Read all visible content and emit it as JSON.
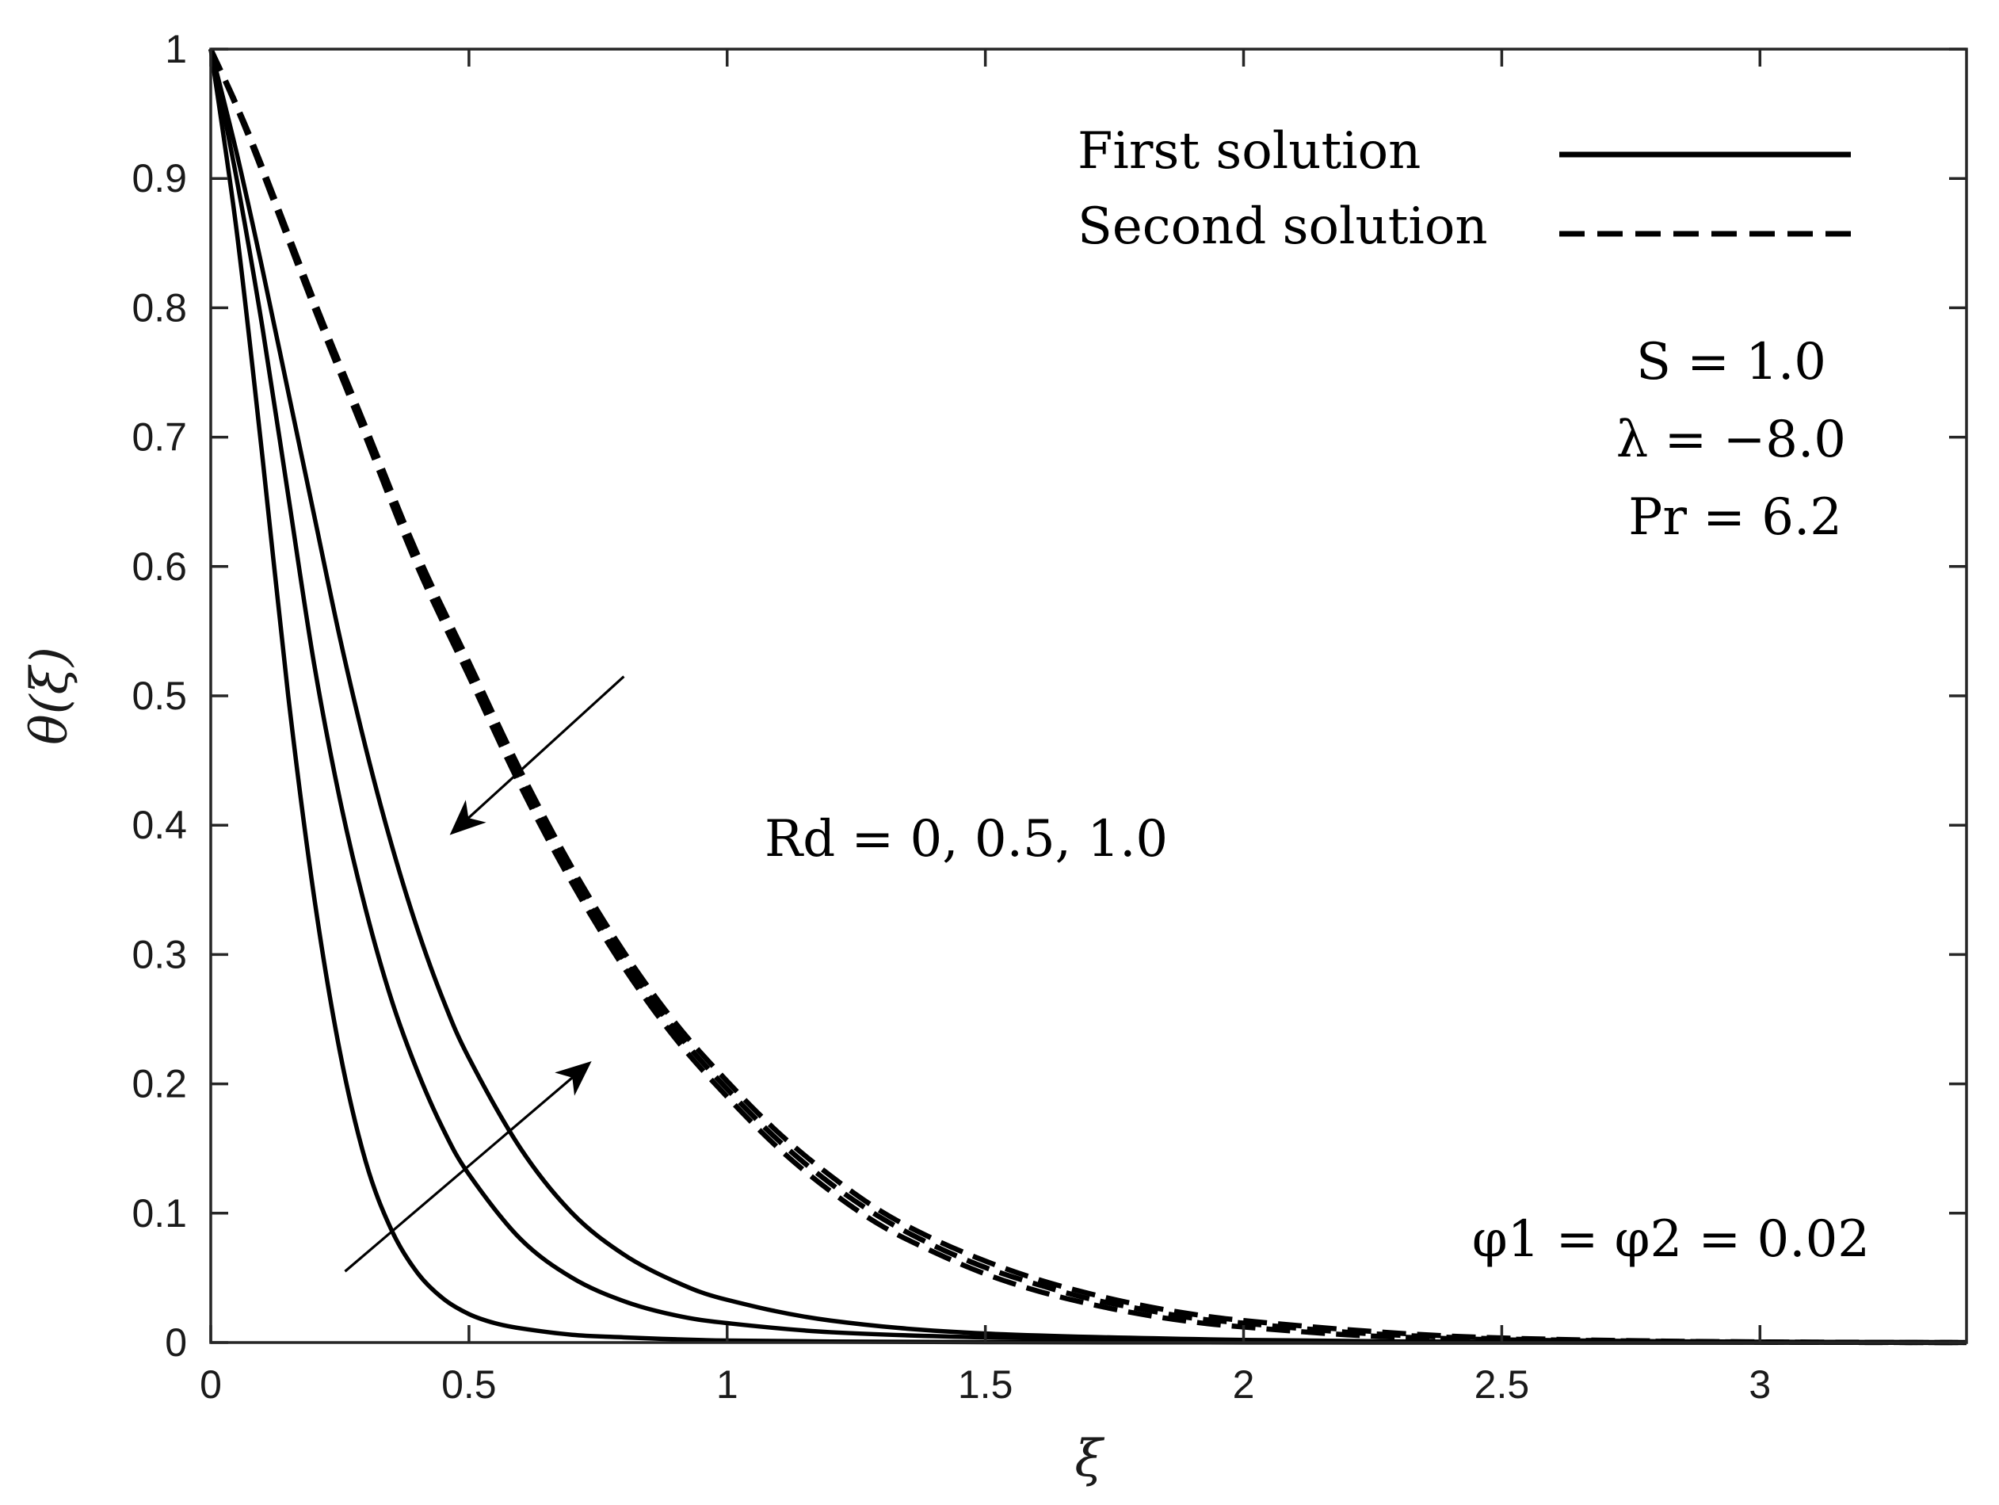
{
  "chart_data": {
    "type": "line",
    "xlabel": "ξ",
    "ylabel": "θ(ξ)",
    "xlim": [
      0,
      3.4
    ],
    "ylim": [
      0,
      1
    ],
    "xticks": [
      {
        "value": 0,
        "label": "0"
      },
      {
        "value": 0.5,
        "label": "0.5"
      },
      {
        "value": 1,
        "label": "1"
      },
      {
        "value": 1.5,
        "label": "1.5"
      },
      {
        "value": 2,
        "label": "2"
      },
      {
        "value": 2.5,
        "label": "2.5"
      },
      {
        "value": 3,
        "label": "3"
      }
    ],
    "yticks": [
      {
        "value": 0,
        "label": "0"
      },
      {
        "value": 0.1,
        "label": "0.1"
      },
      {
        "value": 0.2,
        "label": "0.2"
      },
      {
        "value": 0.3,
        "label": "0.3"
      },
      {
        "value": 0.4,
        "label": "0.4"
      },
      {
        "value": 0.5,
        "label": "0.5"
      },
      {
        "value": 0.6,
        "label": "0.6"
      },
      {
        "value": 0.7,
        "label": "0.7"
      },
      {
        "value": 0.8,
        "label": "0.8"
      },
      {
        "value": 0.9,
        "label": "0.9"
      },
      {
        "value": 1,
        "label": "1"
      }
    ],
    "grid": false,
    "legend": {
      "position": "top-right",
      "entries": [
        {
          "label": "First solution",
          "style": "solid"
        },
        {
          "label": "Second solution",
          "style": "dashed"
        }
      ]
    },
    "series": [
      {
        "name": "First solution, Rd = 0",
        "style": "solid",
        "x": [
          0,
          0.05,
          0.1,
          0.15,
          0.2,
          0.25,
          0.3,
          0.35,
          0.4,
          0.45,
          0.5,
          0.55,
          0.6,
          0.7,
          0.8,
          0.9,
          1.0,
          1.2,
          1.5,
          2.0,
          2.5,
          3.0,
          3.4
        ],
        "y": [
          1.0,
          0.86,
          0.685,
          0.5,
          0.345,
          0.225,
          0.14,
          0.087,
          0.054,
          0.034,
          0.022,
          0.015,
          0.011,
          0.006,
          0.004,
          0.0025,
          0.0015,
          0.0008,
          0.0003,
          0.0001,
          0.0,
          0.0,
          0.0
        ]
      },
      {
        "name": "First solution, Rd = 0.5",
        "style": "solid",
        "x": [
          0,
          0.05,
          0.1,
          0.15,
          0.2,
          0.25,
          0.3,
          0.35,
          0.4,
          0.45,
          0.5,
          0.6,
          0.7,
          0.8,
          0.9,
          1.0,
          1.2,
          1.5,
          2.0,
          2.5,
          3.0,
          3.4
        ],
        "y": [
          1.0,
          0.9,
          0.785,
          0.655,
          0.525,
          0.42,
          0.335,
          0.265,
          0.21,
          0.165,
          0.13,
          0.08,
          0.05,
          0.032,
          0.021,
          0.015,
          0.008,
          0.004,
          0.001,
          0.0002,
          0.0,
          0.0
        ]
      },
      {
        "name": "First solution, Rd = 1.0",
        "style": "solid",
        "x": [
          0,
          0.05,
          0.1,
          0.15,
          0.2,
          0.25,
          0.3,
          0.35,
          0.4,
          0.45,
          0.5,
          0.6,
          0.7,
          0.8,
          0.9,
          1.0,
          1.2,
          1.5,
          2.0,
          2.5,
          3.0,
          3.4
        ],
        "y": [
          1.0,
          0.92,
          0.83,
          0.735,
          0.64,
          0.545,
          0.46,
          0.385,
          0.32,
          0.265,
          0.22,
          0.15,
          0.1,
          0.068,
          0.047,
          0.033,
          0.017,
          0.007,
          0.002,
          0.0005,
          0.0001,
          0.0
        ]
      },
      {
        "name": "Second solution, Rd = 0",
        "style": "dashed",
        "x": [
          0,
          0.05,
          0.1,
          0.2,
          0.3,
          0.4,
          0.5,
          0.6,
          0.7,
          0.8,
          0.9,
          1.0,
          1.1,
          1.2,
          1.3,
          1.4,
          1.5,
          1.6,
          1.7,
          1.8,
          1.9,
          2.0,
          2.2,
          2.4,
          2.6,
          2.8,
          3.0,
          3.2,
          3.4
        ],
        "y": [
          1.0,
          0.955,
          0.905,
          0.8,
          0.7,
          0.6,
          0.515,
          0.43,
          0.355,
          0.29,
          0.235,
          0.19,
          0.15,
          0.117,
          0.09,
          0.07,
          0.053,
          0.04,
          0.03,
          0.022,
          0.016,
          0.012,
          0.006,
          0.003,
          0.0015,
          0.0007,
          0.0003,
          0.0001,
          0.0
        ]
      },
      {
        "name": "Second solution, Rd = 0.5",
        "style": "dashed",
        "x": [
          0,
          0.05,
          0.1,
          0.2,
          0.3,
          0.4,
          0.5,
          0.6,
          0.7,
          0.8,
          0.9,
          1.0,
          1.1,
          1.2,
          1.3,
          1.4,
          1.5,
          1.6,
          1.7,
          1.8,
          1.9,
          2.0,
          2.2,
          2.4,
          2.6,
          2.8,
          3.0,
          3.2,
          3.4
        ],
        "y": [
          1.0,
          0.956,
          0.907,
          0.803,
          0.704,
          0.605,
          0.52,
          0.436,
          0.361,
          0.296,
          0.241,
          0.196,
          0.156,
          0.123,
          0.096,
          0.075,
          0.058,
          0.045,
          0.034,
          0.026,
          0.019,
          0.015,
          0.008,
          0.004,
          0.002,
          0.001,
          0.0004,
          0.0001,
          0.0
        ]
      },
      {
        "name": "Second solution, Rd = 1.0",
        "style": "dashed",
        "x": [
          0,
          0.05,
          0.1,
          0.2,
          0.3,
          0.4,
          0.5,
          0.6,
          0.7,
          0.8,
          0.9,
          1.0,
          1.1,
          1.2,
          1.3,
          1.4,
          1.5,
          1.6,
          1.7,
          1.8,
          1.9,
          2.0,
          2.2,
          2.4,
          2.6,
          2.8,
          3.0,
          3.2,
          3.4
        ],
        "y": [
          1.0,
          0.957,
          0.909,
          0.806,
          0.708,
          0.61,
          0.526,
          0.442,
          0.367,
          0.302,
          0.247,
          0.202,
          0.162,
          0.129,
          0.101,
          0.08,
          0.063,
          0.049,
          0.038,
          0.029,
          0.022,
          0.017,
          0.01,
          0.005,
          0.0025,
          0.0012,
          0.0005,
          0.0002,
          0.0
        ]
      }
    ],
    "annotations": {
      "params": [
        "S = 1.0",
        "λ = −8.0",
        "Pr = 6.2"
      ],
      "rd_label": "Rd = 0, 0.5, 1.0",
      "phi_label": "φ1 = φ2 = 0.02",
      "arrows": [
        {
          "name": "arrow-second-solution",
          "from": [
            0.8,
            0.515
          ],
          "to": [
            0.47,
            0.395
          ]
        },
        {
          "name": "arrow-first-solution",
          "from": [
            0.26,
            0.055
          ],
          "to": [
            0.73,
            0.215
          ]
        }
      ]
    }
  }
}
